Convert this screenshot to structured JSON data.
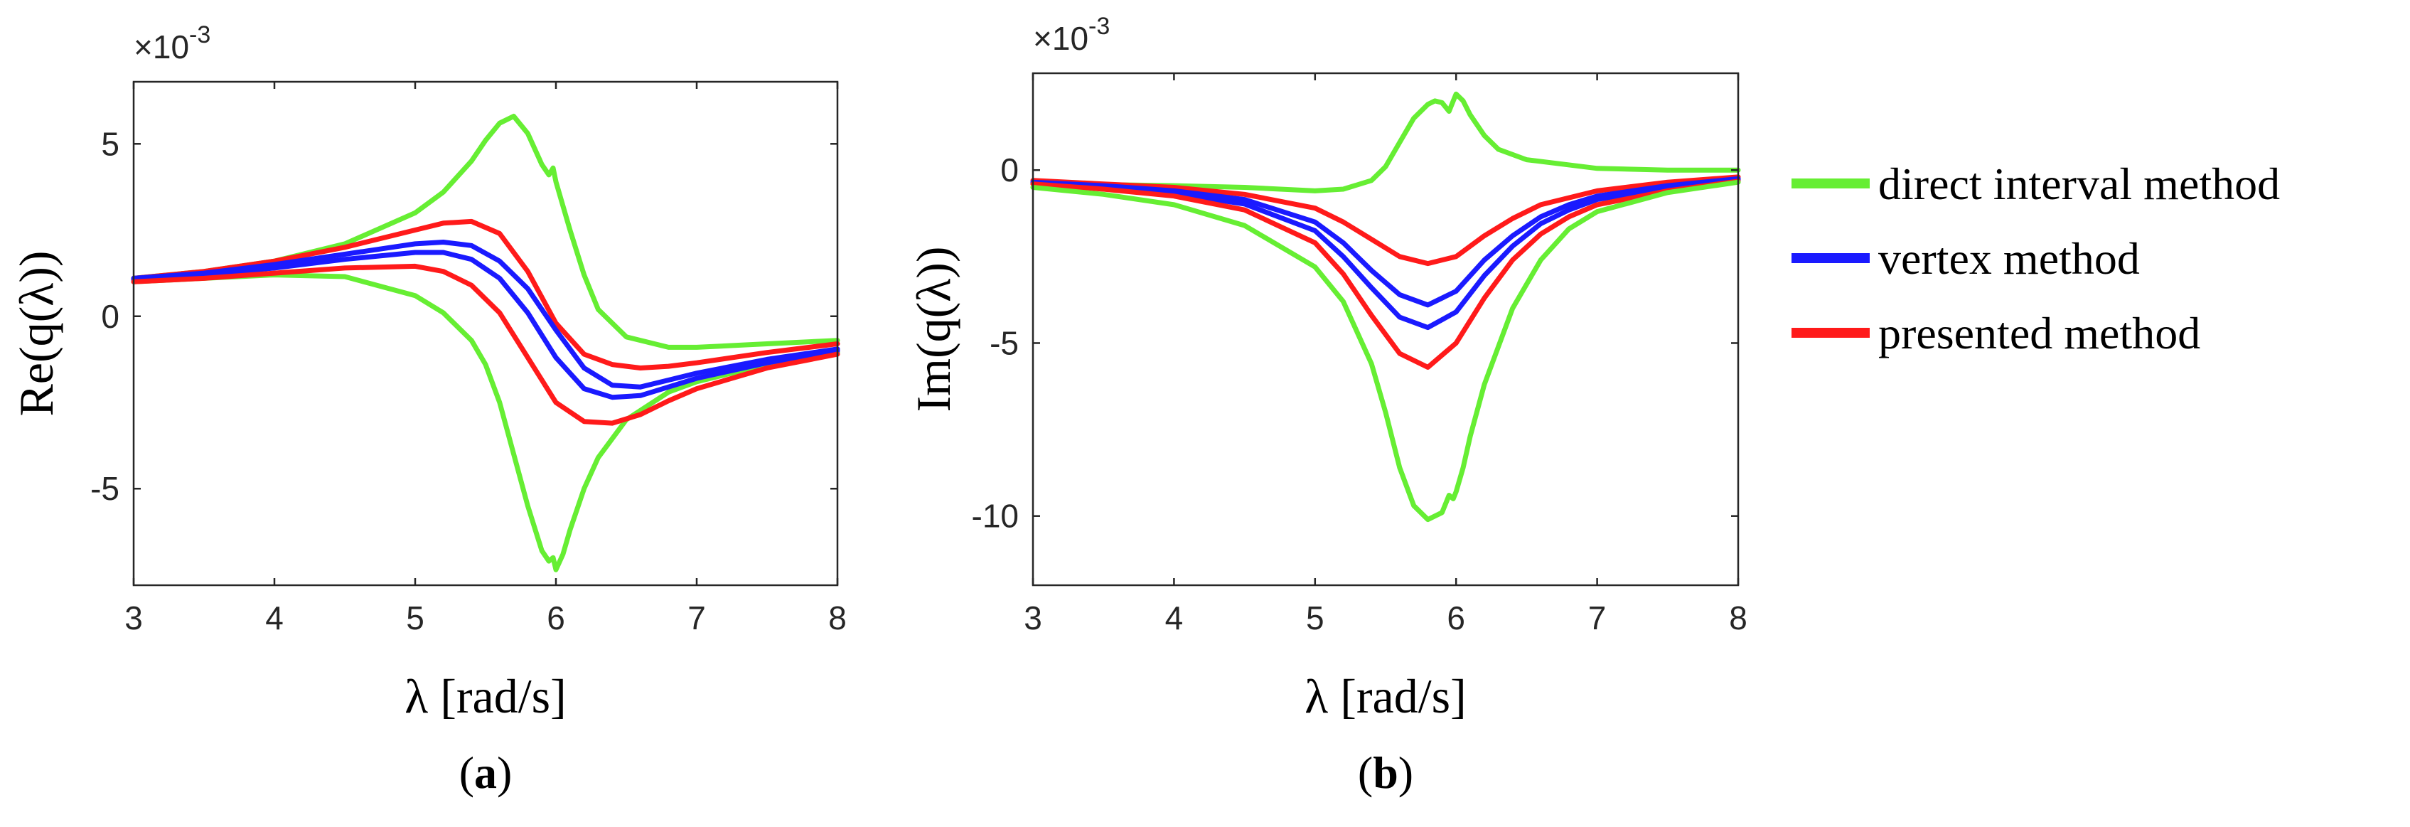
{
  "chart_data": [
    {
      "type": "line",
      "panel_label": "(a)",
      "panel_letter": "a",
      "ylabel": "Re(q(λ))",
      "xlabel": "λ [rad/s]",
      "xlim": [
        3,
        8
      ],
      "ylim": [
        -7.8,
        6.8
      ],
      "xticks": [
        3,
        4,
        5,
        6,
        7,
        8
      ],
      "xtick_labels": [
        "3",
        "4",
        "5",
        "6",
        "7",
        "8"
      ],
      "yticks": [
        -5,
        0,
        5
      ],
      "ytick_labels": [
        "-5",
        "0",
        "5"
      ],
      "y_multiplier": "×10",
      "y_exponent": "-3",
      "series": [
        {
          "name": "direct interval method (upper)",
          "color": "#66ee33",
          "x": [
            3,
            3.5,
            4,
            4.5,
            5,
            5.2,
            5.4,
            5.5,
            5.6,
            5.7,
            5.8,
            5.9,
            5.95,
            5.98,
            6.0,
            6.05,
            6.1,
            6.2,
            6.3,
            6.5,
            6.8,
            7,
            7.5,
            8
          ],
          "y": [
            1.1,
            1.3,
            1.6,
            2.1,
            3.0,
            3.6,
            4.5,
            5.1,
            5.6,
            5.8,
            5.3,
            4.4,
            4.1,
            4.3,
            3.9,
            3.2,
            2.5,
            1.2,
            0.2,
            -0.6,
            -0.9,
            -0.9,
            -0.8,
            -0.7
          ]
        },
        {
          "name": "direct interval method (lower)",
          "color": "#66ee33",
          "x": [
            3,
            3.5,
            4,
            4.5,
            5,
            5.2,
            5.4,
            5.5,
            5.6,
            5.7,
            5.8,
            5.9,
            5.95,
            5.98,
            6.0,
            6.05,
            6.1,
            6.2,
            6.3,
            6.5,
            6.8,
            7,
            7.5,
            8
          ],
          "y": [
            1.0,
            1.1,
            1.2,
            1.15,
            0.6,
            0.1,
            -0.7,
            -1.4,
            -2.5,
            -4.0,
            -5.5,
            -6.8,
            -7.1,
            -7.0,
            -7.35,
            -6.9,
            -6.2,
            -5.0,
            -4.1,
            -3.0,
            -2.2,
            -1.9,
            -1.4,
            -1.05
          ]
        },
        {
          "name": "presented method (upper)",
          "color": "#ff1a1a",
          "x": [
            3,
            3.5,
            4,
            4.5,
            5,
            5.2,
            5.4,
            5.6,
            5.8,
            6,
            6.2,
            6.4,
            6.6,
            6.8,
            7,
            7.5,
            8
          ],
          "y": [
            1.1,
            1.3,
            1.6,
            2.0,
            2.5,
            2.7,
            2.75,
            2.4,
            1.3,
            -0.2,
            -1.1,
            -1.4,
            -1.5,
            -1.45,
            -1.35,
            -1.05,
            -0.8
          ]
        },
        {
          "name": "vertex method (upper)",
          "color": "#1a1aff",
          "x": [
            3,
            3.5,
            4,
            4.5,
            5,
            5.2,
            5.4,
            5.6,
            5.8,
            6,
            6.2,
            6.4,
            6.6,
            6.8,
            7,
            7.5,
            8
          ],
          "y": [
            1.1,
            1.25,
            1.5,
            1.8,
            2.1,
            2.15,
            2.05,
            1.6,
            0.8,
            -0.4,
            -1.5,
            -2.0,
            -2.05,
            -1.85,
            -1.65,
            -1.25,
            -0.95
          ]
        },
        {
          "name": "vertex method (lower)",
          "color": "#1a1aff",
          "x": [
            3,
            3.5,
            4,
            4.5,
            5,
            5.2,
            5.4,
            5.6,
            5.8,
            6,
            6.2,
            6.4,
            6.6,
            6.8,
            7,
            7.5,
            8
          ],
          "y": [
            1.05,
            1.2,
            1.4,
            1.65,
            1.85,
            1.85,
            1.65,
            1.1,
            0.1,
            -1.2,
            -2.1,
            -2.35,
            -2.3,
            -2.05,
            -1.8,
            -1.35,
            -1.0
          ]
        },
        {
          "name": "presented method (lower)",
          "color": "#ff1a1a",
          "x": [
            3,
            3.5,
            4,
            4.5,
            5,
            5.2,
            5.4,
            5.6,
            5.8,
            6,
            6.2,
            6.4,
            6.6,
            6.8,
            7,
            7.5,
            8
          ],
          "y": [
            1.0,
            1.1,
            1.25,
            1.4,
            1.45,
            1.3,
            0.9,
            0.1,
            -1.2,
            -2.5,
            -3.05,
            -3.1,
            -2.85,
            -2.45,
            -2.1,
            -1.5,
            -1.1
          ]
        }
      ]
    },
    {
      "type": "line",
      "panel_label": "(b)",
      "panel_letter": "b",
      "ylabel": "Im(q(λ))",
      "xlabel": "λ [rad/s]",
      "xlim": [
        3,
        8
      ],
      "ylim": [
        -12,
        2.8
      ],
      "xticks": [
        3,
        4,
        5,
        6,
        7,
        8
      ],
      "xtick_labels": [
        "3",
        "4",
        "5",
        "6",
        "7",
        "8"
      ],
      "yticks": [
        -10,
        -5,
        0
      ],
      "ytick_labels": [
        "-10",
        "-5",
        "0"
      ],
      "y_multiplier": "×10",
      "y_exponent": "-3",
      "series": [
        {
          "name": "direct interval method (upper)",
          "color": "#66ee33",
          "x": [
            3,
            3.5,
            4,
            4.5,
            5,
            5.2,
            5.4,
            5.5,
            5.6,
            5.7,
            5.8,
            5.85,
            5.9,
            5.95,
            5.98,
            6.0,
            6.05,
            6.1,
            6.2,
            6.3,
            6.5,
            7,
            7.5,
            8
          ],
          "y": [
            -0.4,
            -0.42,
            -0.45,
            -0.5,
            -0.6,
            -0.55,
            -0.3,
            0.1,
            0.8,
            1.5,
            1.9,
            2.0,
            1.95,
            1.7,
            2.0,
            2.2,
            2.0,
            1.6,
            1.0,
            0.6,
            0.3,
            0.05,
            0.0,
            0.0
          ]
        },
        {
          "name": "presented method (upper)",
          "color": "#ff1a1a",
          "x": [
            3,
            3.5,
            4,
            4.5,
            5,
            5.2,
            5.4,
            5.6,
            5.8,
            6,
            6.2,
            6.4,
            6.6,
            6.8,
            7,
            7.5,
            8
          ],
          "y": [
            -0.3,
            -0.4,
            -0.5,
            -0.7,
            -1.1,
            -1.5,
            -2.0,
            -2.5,
            -2.7,
            -2.5,
            -1.9,
            -1.4,
            -1.0,
            -0.8,
            -0.6,
            -0.35,
            -0.2
          ]
        },
        {
          "name": "vertex method (upper)",
          "color": "#1a1aff",
          "x": [
            3,
            3.5,
            4,
            4.5,
            5,
            5.2,
            5.4,
            5.6,
            5.8,
            6,
            6.2,
            6.4,
            6.6,
            6.8,
            7,
            7.5,
            8
          ],
          "y": [
            -0.35,
            -0.45,
            -0.6,
            -0.85,
            -1.5,
            -2.1,
            -2.9,
            -3.6,
            -3.9,
            -3.5,
            -2.6,
            -1.9,
            -1.35,
            -1.0,
            -0.75,
            -0.45,
            -0.25
          ]
        },
        {
          "name": "vertex method (lower)",
          "color": "#1a1aff",
          "x": [
            3,
            3.5,
            4,
            4.5,
            5,
            5.2,
            5.4,
            5.6,
            5.8,
            6,
            6.2,
            6.4,
            6.6,
            6.8,
            7,
            7.5,
            8
          ],
          "y": [
            -0.38,
            -0.5,
            -0.68,
            -0.98,
            -1.75,
            -2.5,
            -3.4,
            -4.25,
            -4.55,
            -4.1,
            -3.05,
            -2.2,
            -1.55,
            -1.15,
            -0.85,
            -0.5,
            -0.28
          ]
        },
        {
          "name": "presented method (lower)",
          "color": "#ff1a1a",
          "x": [
            3,
            3.5,
            4,
            4.5,
            5,
            5.2,
            5.4,
            5.6,
            5.8,
            6,
            6.2,
            6.4,
            6.6,
            6.8,
            7,
            7.5,
            8
          ],
          "y": [
            -0.4,
            -0.55,
            -0.75,
            -1.15,
            -2.1,
            -3.0,
            -4.2,
            -5.3,
            -5.7,
            -5.0,
            -3.7,
            -2.6,
            -1.85,
            -1.35,
            -1.0,
            -0.6,
            -0.32
          ]
        },
        {
          "name": "direct interval method (lower)",
          "color": "#66ee33",
          "x": [
            3,
            3.5,
            4,
            4.5,
            5,
            5.2,
            5.4,
            5.5,
            5.6,
            5.7,
            5.8,
            5.9,
            5.95,
            5.98,
            6.0,
            6.05,
            6.1,
            6.2,
            6.4,
            6.6,
            6.8,
            7,
            7.5,
            8
          ],
          "y": [
            -0.5,
            -0.7,
            -1.0,
            -1.6,
            -2.8,
            -3.8,
            -5.6,
            -7.0,
            -8.6,
            -9.7,
            -10.1,
            -9.9,
            -9.4,
            -9.5,
            -9.3,
            -8.6,
            -7.7,
            -6.2,
            -4.0,
            -2.6,
            -1.7,
            -1.2,
            -0.65,
            -0.35
          ]
        }
      ]
    }
  ],
  "legend": {
    "position": "right",
    "items": [
      {
        "label": "direct interval method",
        "color": "#66ee33"
      },
      {
        "label": "vertex method",
        "color": "#1a1aff"
      },
      {
        "label": "presented method",
        "color": "#ff1a1a"
      }
    ]
  }
}
